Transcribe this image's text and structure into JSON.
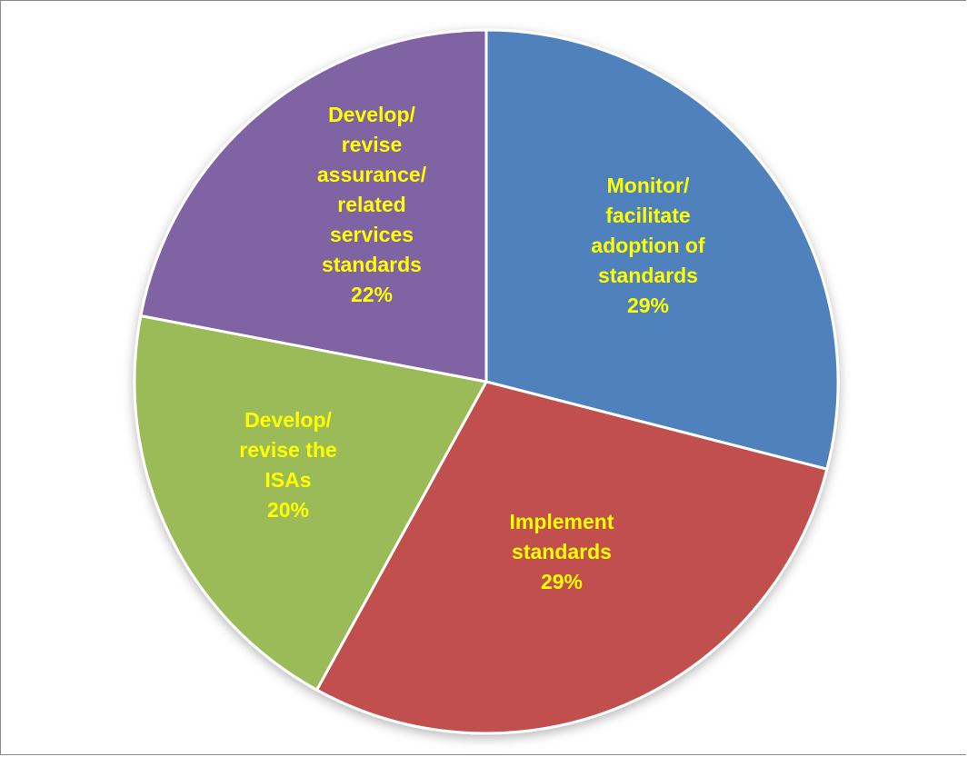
{
  "chart_data": {
    "type": "pie",
    "title": "",
    "start_angle_deg": 0,
    "direction": "clockwise",
    "label_color": "#FFFF00",
    "slices": [
      {
        "label_lines": [
          "Monitor/",
          "facilitate",
          "adoption of",
          "standards",
          "29%"
        ],
        "value": 29,
        "color": "#4F81BD"
      },
      {
        "label_lines": [
          "Implement",
          "standards",
          "29%"
        ],
        "value": 29,
        "color": "#C0504D"
      },
      {
        "label_lines": [
          "Develop/",
          "revise the",
          "ISAs",
          "20%"
        ],
        "value": 20,
        "color": "#9BBB59"
      },
      {
        "label_lines": [
          "Develop/",
          "revise",
          "assurance/",
          "related",
          "services",
          "standards",
          "22%"
        ],
        "value": 22,
        "color": "#8064A2"
      }
    ]
  }
}
